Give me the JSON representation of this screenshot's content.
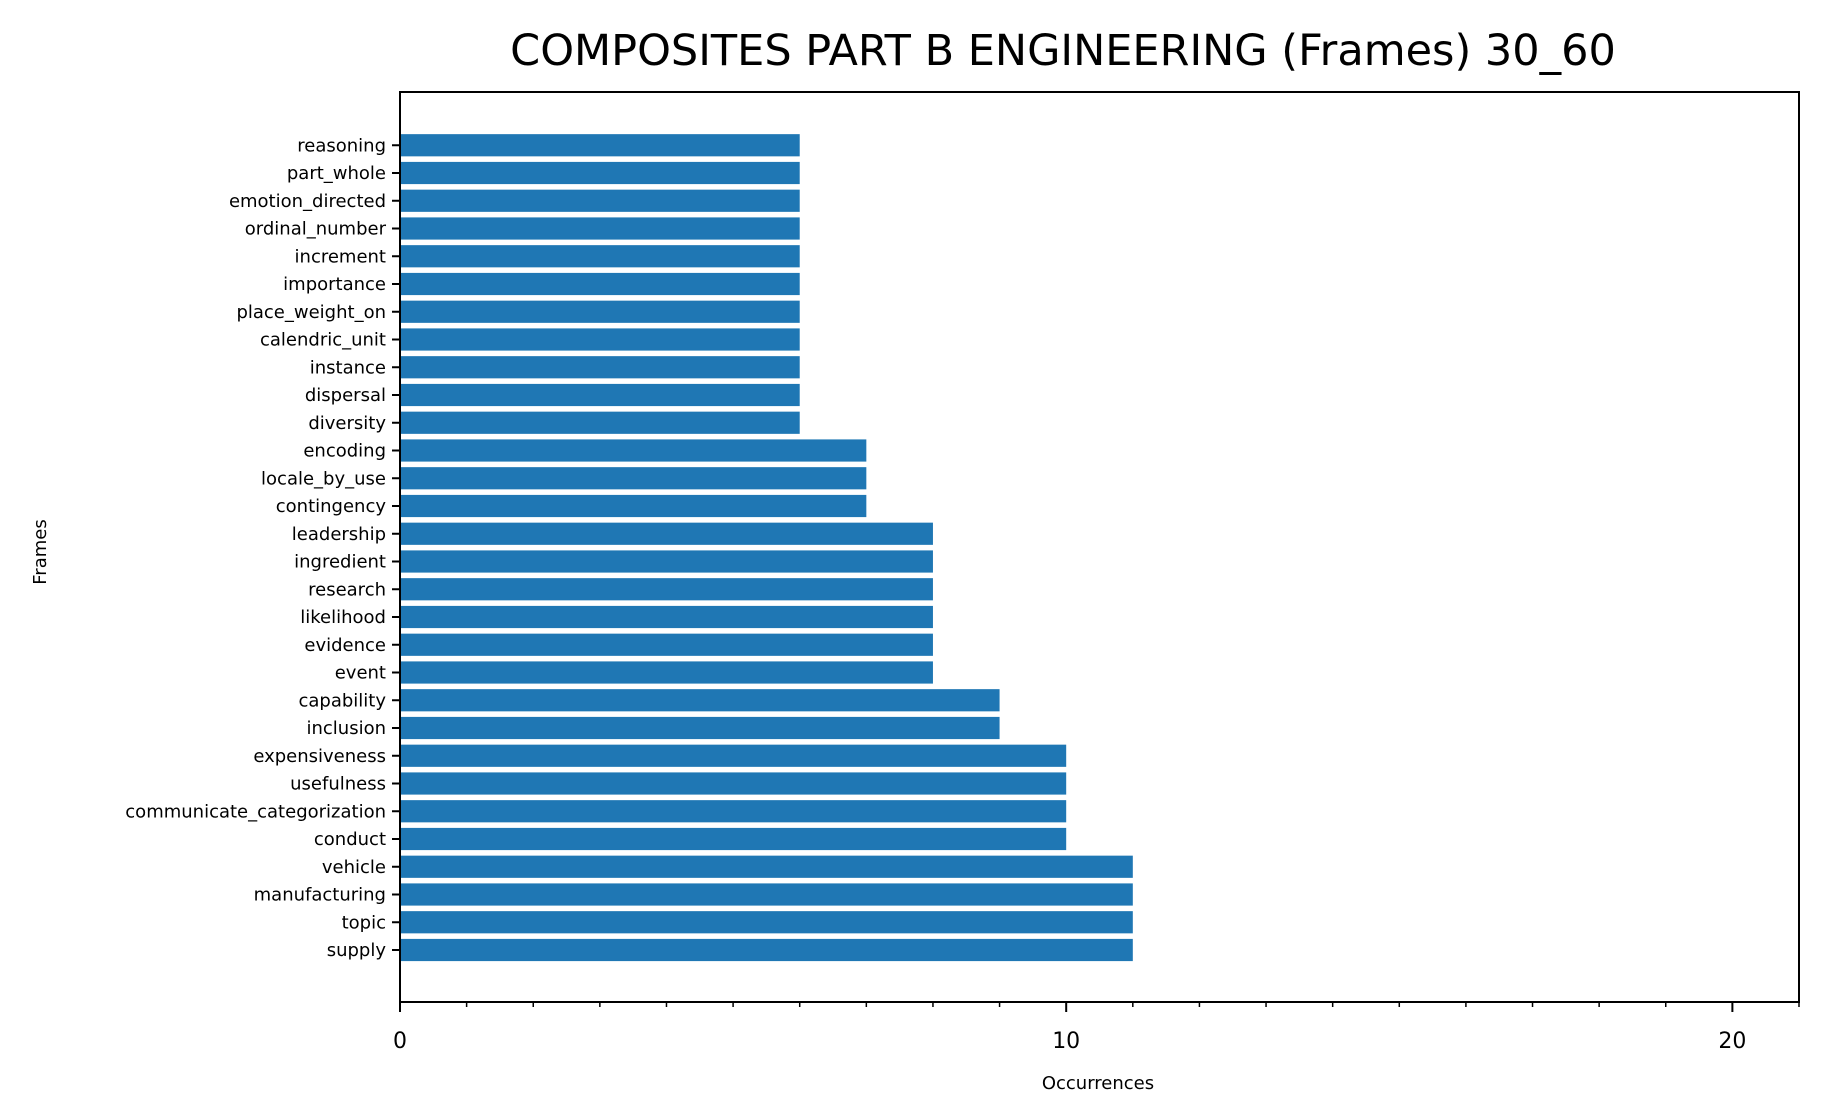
{
  "chart_data": {
    "type": "bar",
    "orientation": "horizontal",
    "title": "COMPOSITES PART B ENGINEERING (Frames) 30_60",
    "xlabel": "Occurrences",
    "ylabel": "Frames",
    "xlim": [
      0,
      21
    ],
    "x_ticks_major": [
      0,
      10,
      20
    ],
    "x_ticks_minor_step": 1,
    "grid": false,
    "bar_color": "#1f77b4",
    "categories": [
      "supply",
      "topic",
      "manufacturing",
      "vehicle",
      "conduct",
      "communicate_categorization",
      "usefulness",
      "expensiveness",
      "inclusion",
      "capability",
      "event",
      "evidence",
      "likelihood",
      "research",
      "ingredient",
      "leadership",
      "contingency",
      "locale_by_use",
      "encoding",
      "diversity",
      "dispersal",
      "instance",
      "calendric_unit",
      "place_weight_on",
      "importance",
      "increment",
      "ordinal_number",
      "emotion_directed",
      "part_whole",
      "reasoning"
    ],
    "values": [
      11,
      11,
      11,
      11,
      10,
      10,
      10,
      10,
      9,
      9,
      8,
      8,
      8,
      8,
      8,
      8,
      7,
      7,
      7,
      6,
      6,
      6,
      6,
      6,
      6,
      6,
      6,
      6,
      6,
      6
    ]
  }
}
